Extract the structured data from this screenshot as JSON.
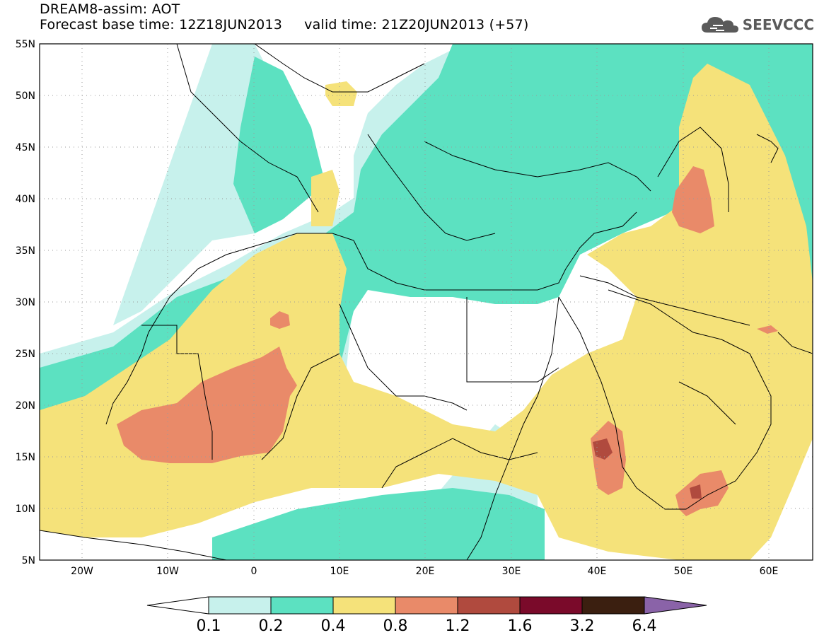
{
  "title": {
    "line1": "DREAM8-assim: AOT",
    "line2": "Forecast base time: 12Z18JUN2013     valid time: 21Z20JUN2013 (+57)"
  },
  "logo": {
    "text": "SEEVCCC",
    "icon": "cloud-icon"
  },
  "map": {
    "lon_range": [
      -25,
      65
    ],
    "lat_range": [
      5,
      55
    ],
    "lon_ticks": [
      "20W",
      "10W",
      "0",
      "10E",
      "20E",
      "30E",
      "40E",
      "50E",
      "60E"
    ],
    "lat_ticks": [
      "55N",
      "50N",
      "45N",
      "40N",
      "35N",
      "30N",
      "25N",
      "20N",
      "15N",
      "10N",
      "5N"
    ],
    "grid": "dotted"
  },
  "colorbar": {
    "labels": [
      "0.1",
      "0.2",
      "0.4",
      "0.8",
      "1.2",
      "1.6",
      "3.2",
      "6.4"
    ],
    "colors": [
      "#ffffff",
      "#c7f1ec",
      "#5ce1c1",
      "#f5e27a",
      "#e98a69",
      "#b04a3e",
      "#7a0a2a",
      "#3b1f10",
      "#8a63a8"
    ]
  }
}
